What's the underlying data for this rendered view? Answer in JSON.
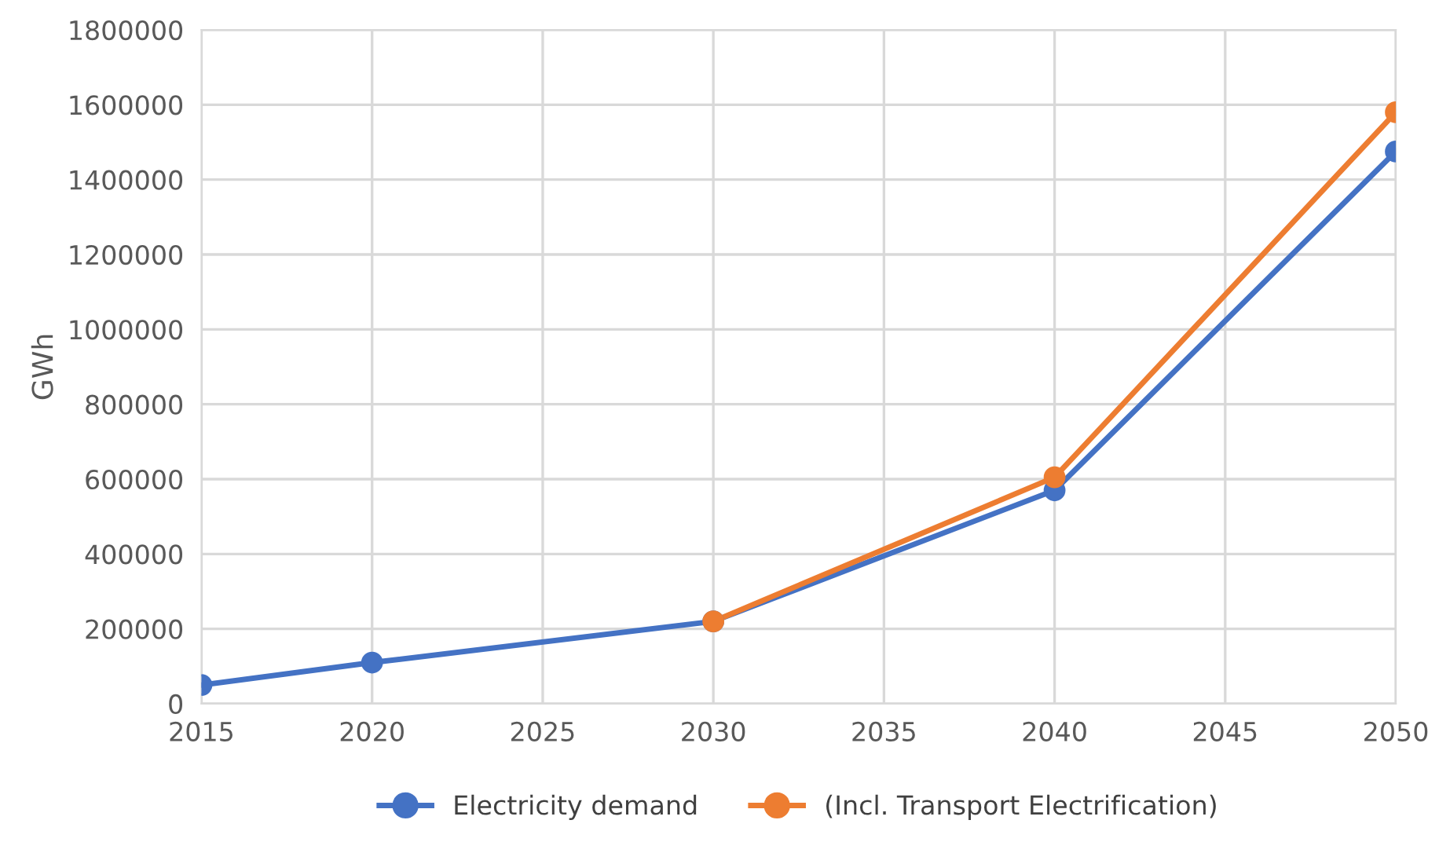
{
  "chart_data": {
    "type": "line",
    "ylabel": "GWh",
    "xlim": [
      2015,
      2050
    ],
    "xticks": [
      2015,
      2020,
      2025,
      2030,
      2035,
      2040,
      2045,
      2050
    ],
    "ylim": [
      0,
      1800000
    ],
    "yticks": [
      0,
      200000,
      400000,
      600000,
      800000,
      1000000,
      1200000,
      1400000,
      1600000,
      1800000
    ],
    "grid": true,
    "legend": "bottom",
    "marker": "circle",
    "line_style": "solid",
    "series": [
      {
        "name": "Electricity demand",
        "color": "#4472c4",
        "x": [
          2015,
          2020,
          2030,
          2040,
          2050
        ],
        "values": [
          50000,
          110000,
          220000,
          570000,
          1475000
        ]
      },
      {
        "name": "(Incl. Transport Electrification)",
        "color": "#ed7d31",
        "x": [
          2030,
          2040,
          2050
        ],
        "values": [
          220000,
          605000,
          1580000
        ]
      }
    ]
  }
}
